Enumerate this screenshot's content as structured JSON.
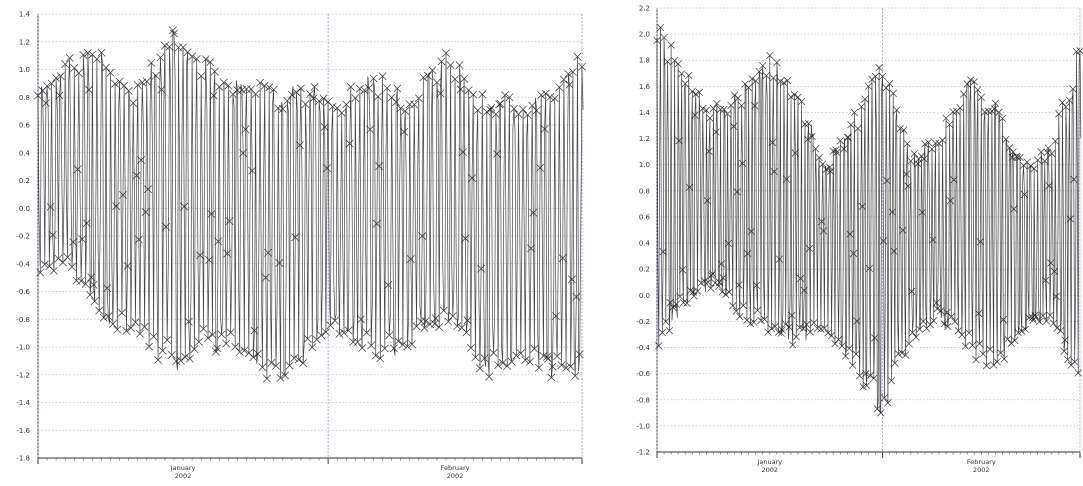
{
  "chart_data": [
    {
      "type": "line",
      "title": "",
      "xlabel": "",
      "ylabel": "",
      "ylim": [
        -1.8,
        1.4
      ],
      "y_ticks": [
        1.4,
        1.2,
        1.0,
        0.8,
        0.6,
        0.4,
        0.2,
        0.0,
        -0.2,
        -0.4,
        -0.6,
        -0.8,
        -1.0,
        -1.2,
        -1.4,
        -1.6,
        -1.8
      ],
      "y_tick_labels": [
        "1.4",
        "1.2",
        "1.0",
        "0.8",
        "0.6",
        "0.4",
        "0.2",
        "0.0",
        "-0.2",
        "-0.4",
        "-0.6",
        "-0.8",
        "-1.0",
        "-1.2",
        "-1.4",
        "-1.6",
        "-1.8"
      ],
      "x_tick_labels": [
        {
          "month": "January",
          "year": "2002"
        },
        {
          "month": "February",
          "year": "2002"
        }
      ],
      "xlim": [
        "2001-12-31",
        "2002-03-01"
      ],
      "month_boundaries": [
        "2002-02-01",
        "2002-03-01"
      ],
      "grid": true,
      "marker": "x",
      "series_color": "#222222",
      "envelope": {
        "x": [
          "2001-12-31",
          "2002-01-03",
          "2002-01-07",
          "2002-01-10",
          "2002-01-15",
          "2002-01-18",
          "2002-01-22",
          "2002-01-26",
          "2002-01-30",
          "2002-02-02",
          "2002-02-06",
          "2002-02-10",
          "2002-02-14",
          "2002-02-18",
          "2002-02-22",
          "2002-02-26",
          "2002-03-01"
        ],
        "upper": [
          0.85,
          1.1,
          1.15,
          0.85,
          1.3,
          1.1,
          0.95,
          0.9,
          0.9,
          0.8,
          1.0,
          0.85,
          1.15,
          0.85,
          0.8,
          0.95,
          1.15
        ],
        "lower": [
          -0.5,
          -0.45,
          -0.8,
          -0.95,
          -1.2,
          -1.05,
          -1.05,
          -1.3,
          -1.1,
          -0.9,
          -1.1,
          -1.05,
          -0.85,
          -1.25,
          -1.1,
          -1.25,
          -1.25
        ]
      }
    },
    {
      "type": "line",
      "title": "",
      "xlabel": "",
      "ylabel": "",
      "ylim": [
        -1.2,
        2.2
      ],
      "y_ticks": [
        2.2,
        2.0,
        1.8,
        1.6,
        1.4,
        1.2,
        1.0,
        0.8,
        0.6,
        0.4,
        0.2,
        0.0,
        -0.2,
        -0.4,
        -0.6,
        -0.8,
        -1.0,
        -1.2
      ],
      "y_tick_labels": [
        "2.2",
        "2.0",
        "1.8",
        "1.6",
        "1.4",
        "1.2",
        "1.0",
        "0.8",
        "0.6",
        "0.4",
        "0.2",
        "0.0",
        "-0.2",
        "-0.4",
        "-0.6",
        "-0.8",
        "-1.0",
        "-1.2"
      ],
      "x_tick_labels": [
        {
          "month": "January",
          "year": "2002"
        },
        {
          "month": "February",
          "year": "2002"
        }
      ],
      "xlim": [
        "2001-12-31",
        "2002-03-01"
      ],
      "month_boundaries": [
        "2002-02-01",
        "2002-03-01"
      ],
      "grid": true,
      "marker": "x",
      "series_color": "#222222",
      "envelope": {
        "x": [
          "2001-12-31",
          "2002-01-04",
          "2002-01-08",
          "2002-01-12",
          "2002-01-16",
          "2002-01-20",
          "2002-01-24",
          "2002-01-28",
          "2002-02-01",
          "2002-02-05",
          "2002-02-09",
          "2002-02-13",
          "2002-02-17",
          "2002-02-21",
          "2002-02-25",
          "2002-03-01"
        ],
        "upper": [
          2.1,
          1.75,
          1.45,
          1.6,
          1.9,
          1.55,
          1.05,
          1.4,
          1.85,
          1.1,
          1.25,
          1.7,
          1.5,
          1.0,
          1.2,
          2.0
        ],
        "lower": [
          -0.45,
          -0.1,
          0.05,
          -0.2,
          -0.35,
          -0.4,
          -0.3,
          -0.6,
          -0.95,
          -0.35,
          -0.2,
          -0.45,
          -0.6,
          -0.3,
          -0.2,
          -0.85
        ]
      }
    }
  ]
}
